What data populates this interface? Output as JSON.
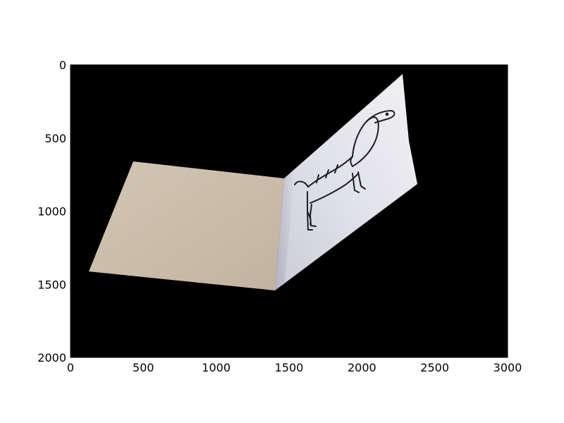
{
  "figure": {
    "image": {
      "description_icon": "photo-of-folded-card-with-dog-drawing",
      "background_color": "#000000",
      "card_left_panel_color": "#c9bba8",
      "card_right_panel_color": "#d8dae2",
      "drawing_color": "#1e1e24"
    },
    "x_axis": {
      "range": [
        0,
        3000
      ],
      "ticks": [
        {
          "value": 0,
          "label": "0"
        },
        {
          "value": 500,
          "label": "500"
        },
        {
          "value": 1000,
          "label": "1000"
        },
        {
          "value": 1500,
          "label": "1500"
        },
        {
          "value": 2000,
          "label": "2000"
        },
        {
          "value": 2500,
          "label": "2500"
        },
        {
          "value": 3000,
          "label": "3000"
        }
      ]
    },
    "y_axis": {
      "range": [
        0,
        2000
      ],
      "inverted": true,
      "ticks": [
        {
          "value": 0,
          "label": "0"
        },
        {
          "value": 500,
          "label": "500"
        },
        {
          "value": 1000,
          "label": "1000"
        },
        {
          "value": 1500,
          "label": "1500"
        },
        {
          "value": 2000,
          "label": "2000"
        }
      ]
    }
  }
}
